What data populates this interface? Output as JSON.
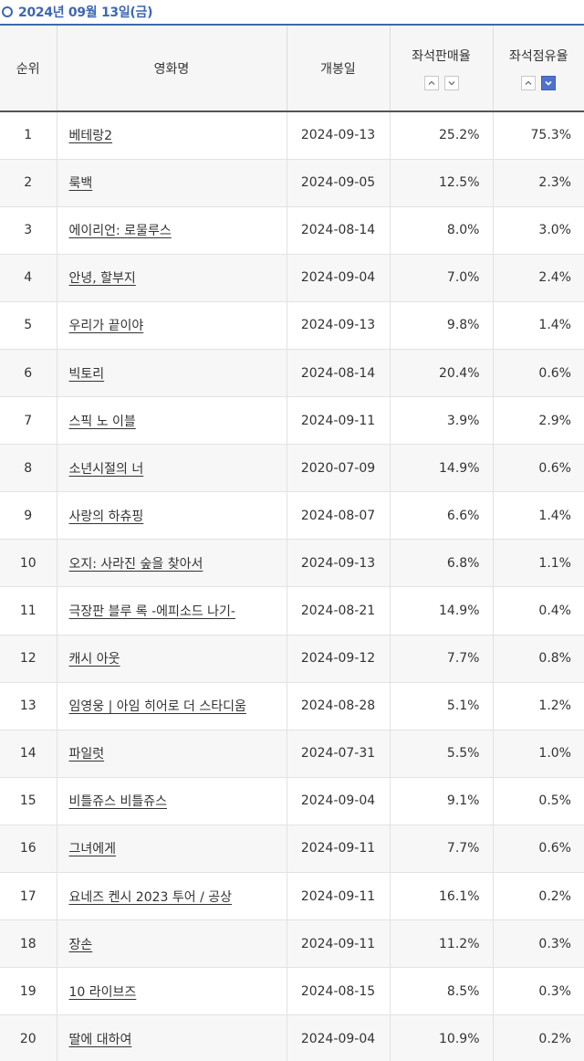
{
  "header": {
    "date": "2024년 09월 13일(금)"
  },
  "table": {
    "columns": {
      "rank": "순위",
      "title": "영화명",
      "release_date": "개봉일",
      "seat_sales_rate": "좌석판매율",
      "seat_share_rate": "좌석점유율"
    },
    "sort": {
      "active_column": "좌석점유율",
      "active_direction": "down"
    },
    "rows": [
      {
        "rank": "1",
        "title": "베테랑2",
        "release_date": "2024-09-13",
        "seat_sales_rate": "25.2%",
        "seat_share_rate": "75.3%"
      },
      {
        "rank": "2",
        "title": "룩백",
        "release_date": "2024-09-05",
        "seat_sales_rate": "12.5%",
        "seat_share_rate": "2.3%"
      },
      {
        "rank": "3",
        "title": "에이리언: 로물루스",
        "release_date": "2024-08-14",
        "seat_sales_rate": "8.0%",
        "seat_share_rate": "3.0%"
      },
      {
        "rank": "4",
        "title": "안녕, 할부지",
        "release_date": "2024-09-04",
        "seat_sales_rate": "7.0%",
        "seat_share_rate": "2.4%"
      },
      {
        "rank": "5",
        "title": "우리가 끝이야",
        "release_date": "2024-09-13",
        "seat_sales_rate": "9.8%",
        "seat_share_rate": "1.4%"
      },
      {
        "rank": "6",
        "title": "빅토리",
        "release_date": "2024-08-14",
        "seat_sales_rate": "20.4%",
        "seat_share_rate": "0.6%"
      },
      {
        "rank": "7",
        "title": "스픽 노 이블",
        "release_date": "2024-09-11",
        "seat_sales_rate": "3.9%",
        "seat_share_rate": "2.9%"
      },
      {
        "rank": "8",
        "title": "소년시절의 너",
        "release_date": "2020-07-09",
        "seat_sales_rate": "14.9%",
        "seat_share_rate": "0.6%"
      },
      {
        "rank": "9",
        "title": "사랑의 하츄핑",
        "release_date": "2024-08-07",
        "seat_sales_rate": "6.6%",
        "seat_share_rate": "1.4%"
      },
      {
        "rank": "10",
        "title": "오지: 사라진 숲을 찾아서",
        "release_date": "2024-09-13",
        "seat_sales_rate": "6.8%",
        "seat_share_rate": "1.1%"
      },
      {
        "rank": "11",
        "title": "극장판 블루 록 -에피소드 나기-",
        "release_date": "2024-08-21",
        "seat_sales_rate": "14.9%",
        "seat_share_rate": "0.4%"
      },
      {
        "rank": "12",
        "title": "캐시 아웃",
        "release_date": "2024-09-12",
        "seat_sales_rate": "7.7%",
        "seat_share_rate": "0.8%"
      },
      {
        "rank": "13",
        "title": "임영웅 | 아임 히어로 더 스타디움",
        "release_date": "2024-08-28",
        "seat_sales_rate": "5.1%",
        "seat_share_rate": "1.2%"
      },
      {
        "rank": "14",
        "title": "파일럿",
        "release_date": "2024-07-31",
        "seat_sales_rate": "5.5%",
        "seat_share_rate": "1.0%"
      },
      {
        "rank": "15",
        "title": "비틀쥬스 비틀쥬스",
        "release_date": "2024-09-04",
        "seat_sales_rate": "9.1%",
        "seat_share_rate": "0.5%"
      },
      {
        "rank": "16",
        "title": "그녀에게",
        "release_date": "2024-09-11",
        "seat_sales_rate": "7.7%",
        "seat_share_rate": "0.6%"
      },
      {
        "rank": "17",
        "title": "요네즈 켄시 2023 투어 / 공상",
        "release_date": "2024-09-11",
        "seat_sales_rate": "16.1%",
        "seat_share_rate": "0.2%"
      },
      {
        "rank": "18",
        "title": "장손",
        "release_date": "2024-09-11",
        "seat_sales_rate": "11.2%",
        "seat_share_rate": "0.3%"
      },
      {
        "rank": "19",
        "title": "10 라이브즈",
        "release_date": "2024-08-15",
        "seat_sales_rate": "8.5%",
        "seat_share_rate": "0.3%"
      },
      {
        "rank": "20",
        "title": "딸에 대하여",
        "release_date": "2024-09-04",
        "seat_sales_rate": "10.9%",
        "seat_share_rate": "0.2%"
      }
    ]
  },
  "colors": {
    "accent": "#3e67b2",
    "active_sort": "#4f72cf"
  }
}
